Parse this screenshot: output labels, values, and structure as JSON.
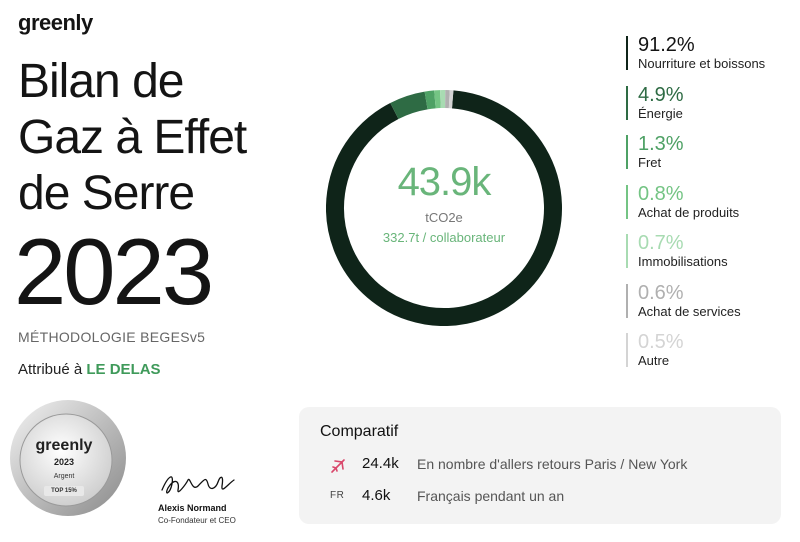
{
  "brand": "greenly",
  "title_lines": [
    "Bilan de",
    "Gaz à Effet",
    "de Serre"
  ],
  "year": "2023",
  "methodology": "MÉTHODOLOGIE BEGESv5",
  "attribution": {
    "prefix": "Attribué à",
    "company": "LE DELAS"
  },
  "donut": {
    "total": "43.9k",
    "unit": "tCO2e",
    "per_employee": "332.7t / collaborateur"
  },
  "chart_data": {
    "type": "pie",
    "categories": [
      "Nourriture et boissons",
      "Énergie",
      "Fret",
      "Achat de produits",
      "Immobilisations",
      "Achat de services",
      "Autre"
    ],
    "values": [
      91.2,
      4.9,
      1.3,
      0.8,
      0.7,
      0.6,
      0.5
    ]
  },
  "legend": [
    {
      "pct": "91.2%",
      "label": "Nourriture et boissons",
      "color": "#0f2419"
    },
    {
      "pct": "4.9%",
      "label": "Énergie",
      "color": "#2e6b44"
    },
    {
      "pct": "1.3%",
      "label": "Fret",
      "color": "#4ea165"
    },
    {
      "pct": "0.8%",
      "label": "Achat de produits",
      "color": "#74c484"
    },
    {
      "pct": "0.7%",
      "label": "Immobilisations",
      "color": "#a8dbb2"
    },
    {
      "pct": "0.6%",
      "label": "Achat de services",
      "color": "#b0b0b0"
    },
    {
      "pct": "0.5%",
      "label": "Autre",
      "color": "#d4d4d4"
    }
  ],
  "badge": {
    "brand": "greenly",
    "year": "2023",
    "level": "Argent",
    "rank": "TOP 15%"
  },
  "signature": {
    "name": "Alexis Normand",
    "role": "Co-Fondateur et CEO"
  },
  "comparatif": {
    "title": "Comparatif",
    "rows": [
      {
        "icon": "airplane-icon",
        "value": "24.4k",
        "desc": "En nombre d'allers retours Paris / New York"
      },
      {
        "icon": "FR",
        "value": "4.6k",
        "desc": "Français pendant un an"
      }
    ]
  }
}
